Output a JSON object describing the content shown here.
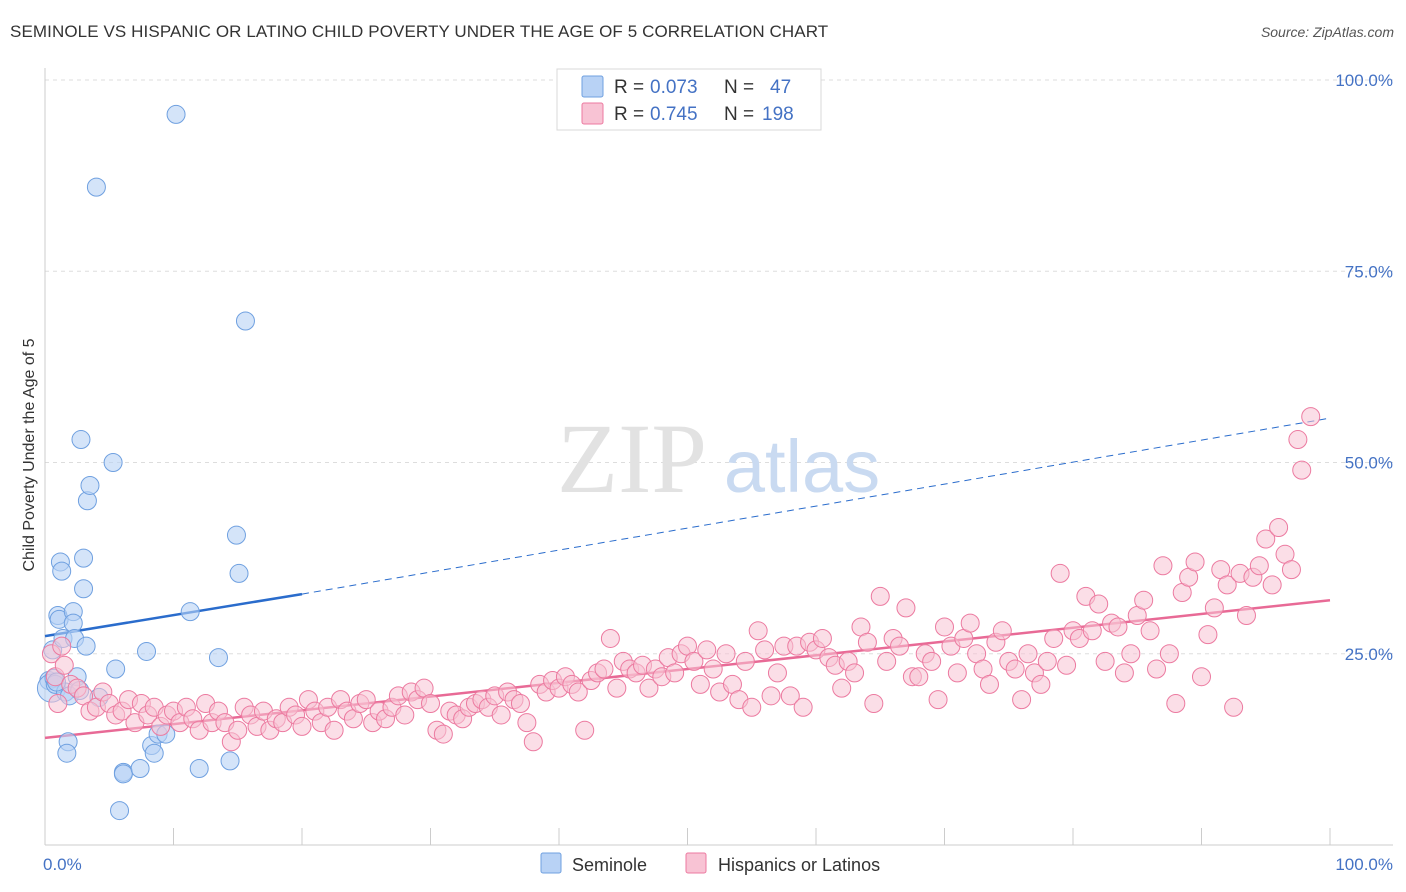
{
  "title": "SEMINOLE VS HISPANIC OR LATINO CHILD POVERTY UNDER THE AGE OF 5 CORRELATION CHART",
  "source": "Source: ZipAtlas.com",
  "watermark": {
    "zip": "ZIP",
    "atlas": "atlas"
  },
  "colors": {
    "seminole": "#6fa0e0",
    "seminole_fill": "#b8d2f5",
    "hispanic": "#ec7aa0",
    "hispanic_fill": "#f8c3d4",
    "seminole_line": "#2a6ccc",
    "hispanic_line": "#e86a96"
  },
  "legend": {
    "r_label": "R =",
    "n_label": "N =",
    "rows": [
      {
        "r": "0.073",
        "n": "47"
      },
      {
        "r": "0.745",
        "n": "198"
      }
    ]
  },
  "bottom_legend": [
    "Seminole",
    "Hispanics or Latinos"
  ],
  "chart_data": {
    "type": "scatter",
    "title": "SEMINOLE VS HISPANIC OR LATINO CHILD POVERTY UNDER THE AGE OF 5 CORRELATION CHART",
    "xlabel": "",
    "ylabel": "Child Poverty Under the Age of 5",
    "xlim": [
      0,
      100
    ],
    "ylim": [
      0,
      100
    ],
    "x_tick_labels": [
      "0.0%",
      "100.0%"
    ],
    "y_tick_labels": [
      "100.0%",
      "75.0%",
      "50.0%",
      "25.0%"
    ],
    "y_tick_values": [
      100,
      75,
      50,
      25
    ],
    "x_minor_ticks": [
      10,
      20,
      30,
      40,
      50,
      60,
      70,
      80,
      90,
      100
    ],
    "series": [
      {
        "name": "Seminole",
        "trend": {
          "x0": 0,
          "y0": 27.3,
          "x1": 20,
          "y1": 32.8,
          "dashed_to_x": 100,
          "dashed_to_y": 55.8
        },
        "points": [
          [
            0.3,
            21.5
          ],
          [
            0.5,
            20.5
          ],
          [
            0.6,
            25.5
          ],
          [
            0.7,
            21.8
          ],
          [
            0.8,
            21.0
          ],
          [
            1,
            30
          ],
          [
            1.1,
            29.5
          ],
          [
            1.2,
            37
          ],
          [
            1.3,
            35.8
          ],
          [
            1.4,
            27
          ],
          [
            1.6,
            20
          ],
          [
            1.8,
            13.5
          ],
          [
            1.7,
            12
          ],
          [
            2.2,
            30.5
          ],
          [
            2.2,
            29
          ],
          [
            2.3,
            27
          ],
          [
            2.5,
            22
          ],
          [
            2.8,
            53
          ],
          [
            3,
            37.5
          ],
          [
            3,
            33.5
          ],
          [
            3.2,
            26
          ],
          [
            3.3,
            45
          ],
          [
            3.5,
            47
          ],
          [
            4,
            86
          ],
          [
            5.3,
            50
          ],
          [
            5.5,
            23
          ],
          [
            5.8,
            4.5
          ],
          [
            6.1,
            9.5
          ],
          [
            6.1,
            9.3
          ],
          [
            7.4,
            10
          ],
          [
            7.9,
            25.3
          ],
          [
            8.3,
            13
          ],
          [
            8.5,
            12
          ],
          [
            8.8,
            14.5
          ],
          [
            9.4,
            14.5
          ],
          [
            10.2,
            95.5
          ],
          [
            11.3,
            30.5
          ],
          [
            12,
            10
          ],
          [
            13.5,
            24.5
          ],
          [
            14.4,
            11
          ],
          [
            14.9,
            40.5
          ],
          [
            15.1,
            35.5
          ],
          [
            15.6,
            68.5
          ],
          [
            1.9,
            19.5
          ],
          [
            2.7,
            20.2
          ],
          [
            4.2,
            19.3
          ],
          [
            0.9,
            21.3
          ]
        ]
      },
      {
        "name": "Hispanics or Latinos",
        "trend": {
          "x0": 0,
          "y0": 14.0,
          "x1": 100,
          "y1": 32.0
        },
        "points": [
          [
            0.5,
            25
          ],
          [
            0.8,
            22
          ],
          [
            1,
            18.5
          ],
          [
            1.3,
            26
          ],
          [
            1.5,
            23.5
          ],
          [
            2,
            21
          ],
          [
            2.5,
            20.5
          ],
          [
            3,
            19.5
          ],
          [
            3.5,
            17.5
          ],
          [
            4,
            18
          ],
          [
            4.5,
            20
          ],
          [
            5,
            18.5
          ],
          [
            5.5,
            17
          ],
          [
            6,
            17.5
          ],
          [
            6.5,
            19
          ],
          [
            7,
            16
          ],
          [
            7.5,
            18.5
          ],
          [
            8,
            17
          ],
          [
            8.5,
            18
          ],
          [
            9,
            15.5
          ],
          [
            9.5,
            17
          ],
          [
            10,
            17.5
          ],
          [
            10.5,
            16
          ],
          [
            11,
            18
          ],
          [
            11.5,
            16.5
          ],
          [
            12,
            15
          ],
          [
            12.5,
            18.5
          ],
          [
            13,
            16
          ],
          [
            13.5,
            17.5
          ],
          [
            14,
            16
          ],
          [
            14.5,
            13.5
          ],
          [
            15,
            15
          ],
          [
            15.5,
            18
          ],
          [
            16,
            17
          ],
          [
            16.5,
            15.5
          ],
          [
            17,
            17.5
          ],
          [
            17.5,
            15
          ],
          [
            18,
            16.5
          ],
          [
            18.5,
            16
          ],
          [
            19,
            18
          ],
          [
            19.5,
            17
          ],
          [
            20,
            15.5
          ],
          [
            20.5,
            19
          ],
          [
            21,
            17.5
          ],
          [
            21.5,
            16
          ],
          [
            22,
            18
          ],
          [
            22.5,
            15
          ],
          [
            23,
            19
          ],
          [
            23.5,
            17.5
          ],
          [
            24,
            16.5
          ],
          [
            24.5,
            18.5
          ],
          [
            25,
            19
          ],
          [
            25.5,
            16
          ],
          [
            26,
            17.5
          ],
          [
            26.5,
            16.5
          ],
          [
            27,
            18
          ],
          [
            27.5,
            19.5
          ],
          [
            28,
            17
          ],
          [
            28.5,
            20
          ],
          [
            29,
            19
          ],
          [
            29.5,
            20.5
          ],
          [
            30,
            18.5
          ],
          [
            30.5,
            15
          ],
          [
            31,
            14.5
          ],
          [
            31.5,
            17.5
          ],
          [
            32,
            17
          ],
          [
            32.5,
            16.5
          ],
          [
            33,
            18
          ],
          [
            33.5,
            18.5
          ],
          [
            34,
            19
          ],
          [
            34.5,
            18
          ],
          [
            35,
            19.5
          ],
          [
            35.5,
            17
          ],
          [
            36,
            20
          ],
          [
            36.5,
            19
          ],
          [
            37,
            18.5
          ],
          [
            37.5,
            16
          ],
          [
            38,
            13.5
          ],
          [
            38.5,
            21
          ],
          [
            39,
            20
          ],
          [
            39.5,
            21.5
          ],
          [
            40,
            20.5
          ],
          [
            40.5,
            22
          ],
          [
            41,
            21
          ],
          [
            41.5,
            20
          ],
          [
            42,
            15
          ],
          [
            42.5,
            21.5
          ],
          [
            43,
            22.5
          ],
          [
            43.5,
            23
          ],
          [
            44,
            27
          ],
          [
            44.5,
            20.5
          ],
          [
            45,
            24
          ],
          [
            45.5,
            23
          ],
          [
            46,
            22.5
          ],
          [
            46.5,
            23.5
          ],
          [
            47,
            20.5
          ],
          [
            47.5,
            23
          ],
          [
            48,
            22
          ],
          [
            48.5,
            24.5
          ],
          [
            49,
            22.5
          ],
          [
            49.5,
            25
          ],
          [
            50,
            26
          ],
          [
            50.5,
            24
          ],
          [
            51,
            21
          ],
          [
            51.5,
            25.5
          ],
          [
            52,
            23
          ],
          [
            52.5,
            20
          ],
          [
            53,
            25
          ],
          [
            53.5,
            21
          ],
          [
            54,
            19
          ],
          [
            54.5,
            24
          ],
          [
            55,
            18
          ],
          [
            55.5,
            28
          ],
          [
            56,
            25.5
          ],
          [
            56.5,
            19.5
          ],
          [
            57,
            22.5
          ],
          [
            57.5,
            26
          ],
          [
            58,
            19.5
          ],
          [
            58.5,
            26
          ],
          [
            59,
            18
          ],
          [
            59.5,
            26.5
          ],
          [
            60,
            25.5
          ],
          [
            60.5,
            27
          ],
          [
            61,
            24.5
          ],
          [
            61.5,
            23.5
          ],
          [
            62,
            20.5
          ],
          [
            62.5,
            24
          ],
          [
            63,
            22.5
          ],
          [
            63.5,
            28.5
          ],
          [
            64,
            26.5
          ],
          [
            64.5,
            18.5
          ],
          [
            65,
            32.5
          ],
          [
            65.5,
            24
          ],
          [
            66,
            27
          ],
          [
            66.5,
            26
          ],
          [
            67,
            31
          ],
          [
            67.5,
            22
          ],
          [
            68,
            22
          ],
          [
            68.5,
            25
          ],
          [
            69,
            24
          ],
          [
            69.5,
            19
          ],
          [
            70,
            28.5
          ],
          [
            70.5,
            26
          ],
          [
            71,
            22.5
          ],
          [
            71.5,
            27
          ],
          [
            72,
            29
          ],
          [
            72.5,
            25
          ],
          [
            73,
            23
          ],
          [
            73.5,
            21
          ],
          [
            74,
            26.5
          ],
          [
            74.5,
            28
          ],
          [
            75,
            24
          ],
          [
            75.5,
            23
          ],
          [
            76,
            19
          ],
          [
            76.5,
            25
          ],
          [
            77,
            22.5
          ],
          [
            77.5,
            21
          ],
          [
            78,
            24
          ],
          [
            78.5,
            27
          ],
          [
            79,
            35.5
          ],
          [
            79.5,
            23.5
          ],
          [
            80,
            28
          ],
          [
            80.5,
            27
          ],
          [
            81,
            32.5
          ],
          [
            81.5,
            28
          ],
          [
            82,
            31.5
          ],
          [
            82.5,
            24
          ],
          [
            83,
            29
          ],
          [
            83.5,
            28.5
          ],
          [
            84,
            22.5
          ],
          [
            84.5,
            25
          ],
          [
            85,
            30
          ],
          [
            85.5,
            32
          ],
          [
            86,
            28
          ],
          [
            86.5,
            23
          ],
          [
            87,
            36.5
          ],
          [
            87.5,
            25
          ],
          [
            88,
            18.5
          ],
          [
            88.5,
            33
          ],
          [
            89,
            35
          ],
          [
            89.5,
            37
          ],
          [
            90,
            22
          ],
          [
            90.5,
            27.5
          ],
          [
            91,
            31
          ],
          [
            91.5,
            36
          ],
          [
            92,
            34
          ],
          [
            92.5,
            18
          ],
          [
            93,
            35.5
          ],
          [
            93.5,
            30
          ],
          [
            94,
            35
          ],
          [
            94.5,
            36.5
          ],
          [
            95,
            40
          ],
          [
            95.5,
            34
          ],
          [
            96,
            41.5
          ],
          [
            96.5,
            38
          ],
          [
            97,
            36
          ],
          [
            97.5,
            53
          ],
          [
            97.8,
            49
          ],
          [
            98.5,
            56
          ]
        ]
      }
    ]
  }
}
